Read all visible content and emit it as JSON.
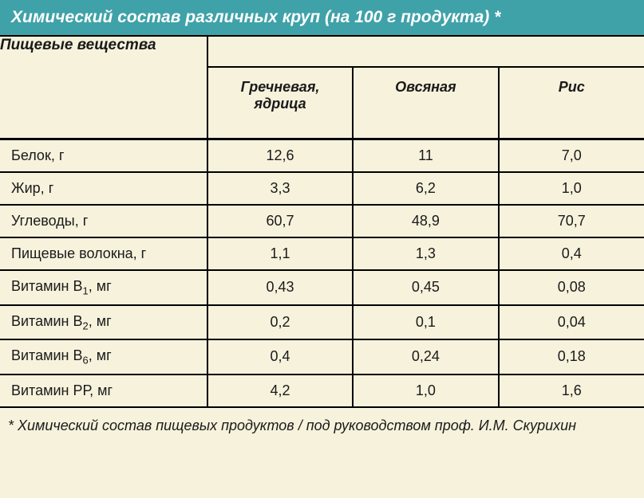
{
  "style": {
    "header_bg": "#3fa2a8",
    "header_text": "#ffffff",
    "page_bg": "#f6f2dc",
    "text_color": "#1a1a1a",
    "border_color": "#000000",
    "title_fontsize": 21,
    "colhead_fontsize": 18,
    "body_fontsize": 18,
    "col_widths_pct": [
      32.2,
      22.6,
      22.6,
      22.6
    ]
  },
  "title": "Химический состав различных круп (на 100 г продукта) *",
  "corner_label": "Пищевые вещества",
  "columns": [
    {
      "label_line1": "Гречневая,",
      "label_line2": "ядрица"
    },
    {
      "label_line1": "Овсяная",
      "label_line2": ""
    },
    {
      "label_line1": "Рис",
      "label_line2": ""
    }
  ],
  "rows": [
    {
      "label": "Белок, г",
      "sub": "",
      "values": [
        "12,6",
        "11",
        "7,0"
      ]
    },
    {
      "label": "Жир, г",
      "sub": "",
      "values": [
        "3,3",
        "6,2",
        "1,0"
      ]
    },
    {
      "label": "Углеводы, г",
      "sub": "",
      "values": [
        "60,7",
        "48,9",
        "70,7"
      ]
    },
    {
      "label": "Пищевые волокна, г",
      "sub": "",
      "values": [
        "1,1",
        "1,3",
        "0,4"
      ]
    },
    {
      "label": "Витамин В",
      "sub": "1",
      "unit": ", мг",
      "values": [
        "0,43",
        "0,45",
        "0,08"
      ]
    },
    {
      "label": "Витамин В",
      "sub": "2",
      "unit": ", мг",
      "values": [
        "0,2",
        "0,1",
        "0,04"
      ]
    },
    {
      "label": "Витамин В",
      "sub": "6",
      "unit": ", мг",
      "values": [
        "0,4",
        "0,24",
        "0,18"
      ]
    },
    {
      "label": "Витамин РР, мг",
      "sub": "",
      "values": [
        "4,2",
        "1,0",
        "1,6"
      ]
    }
  ],
  "footnote": "* Химический состав пищевых продуктов / под руководством проф. И.М. Скурихин"
}
